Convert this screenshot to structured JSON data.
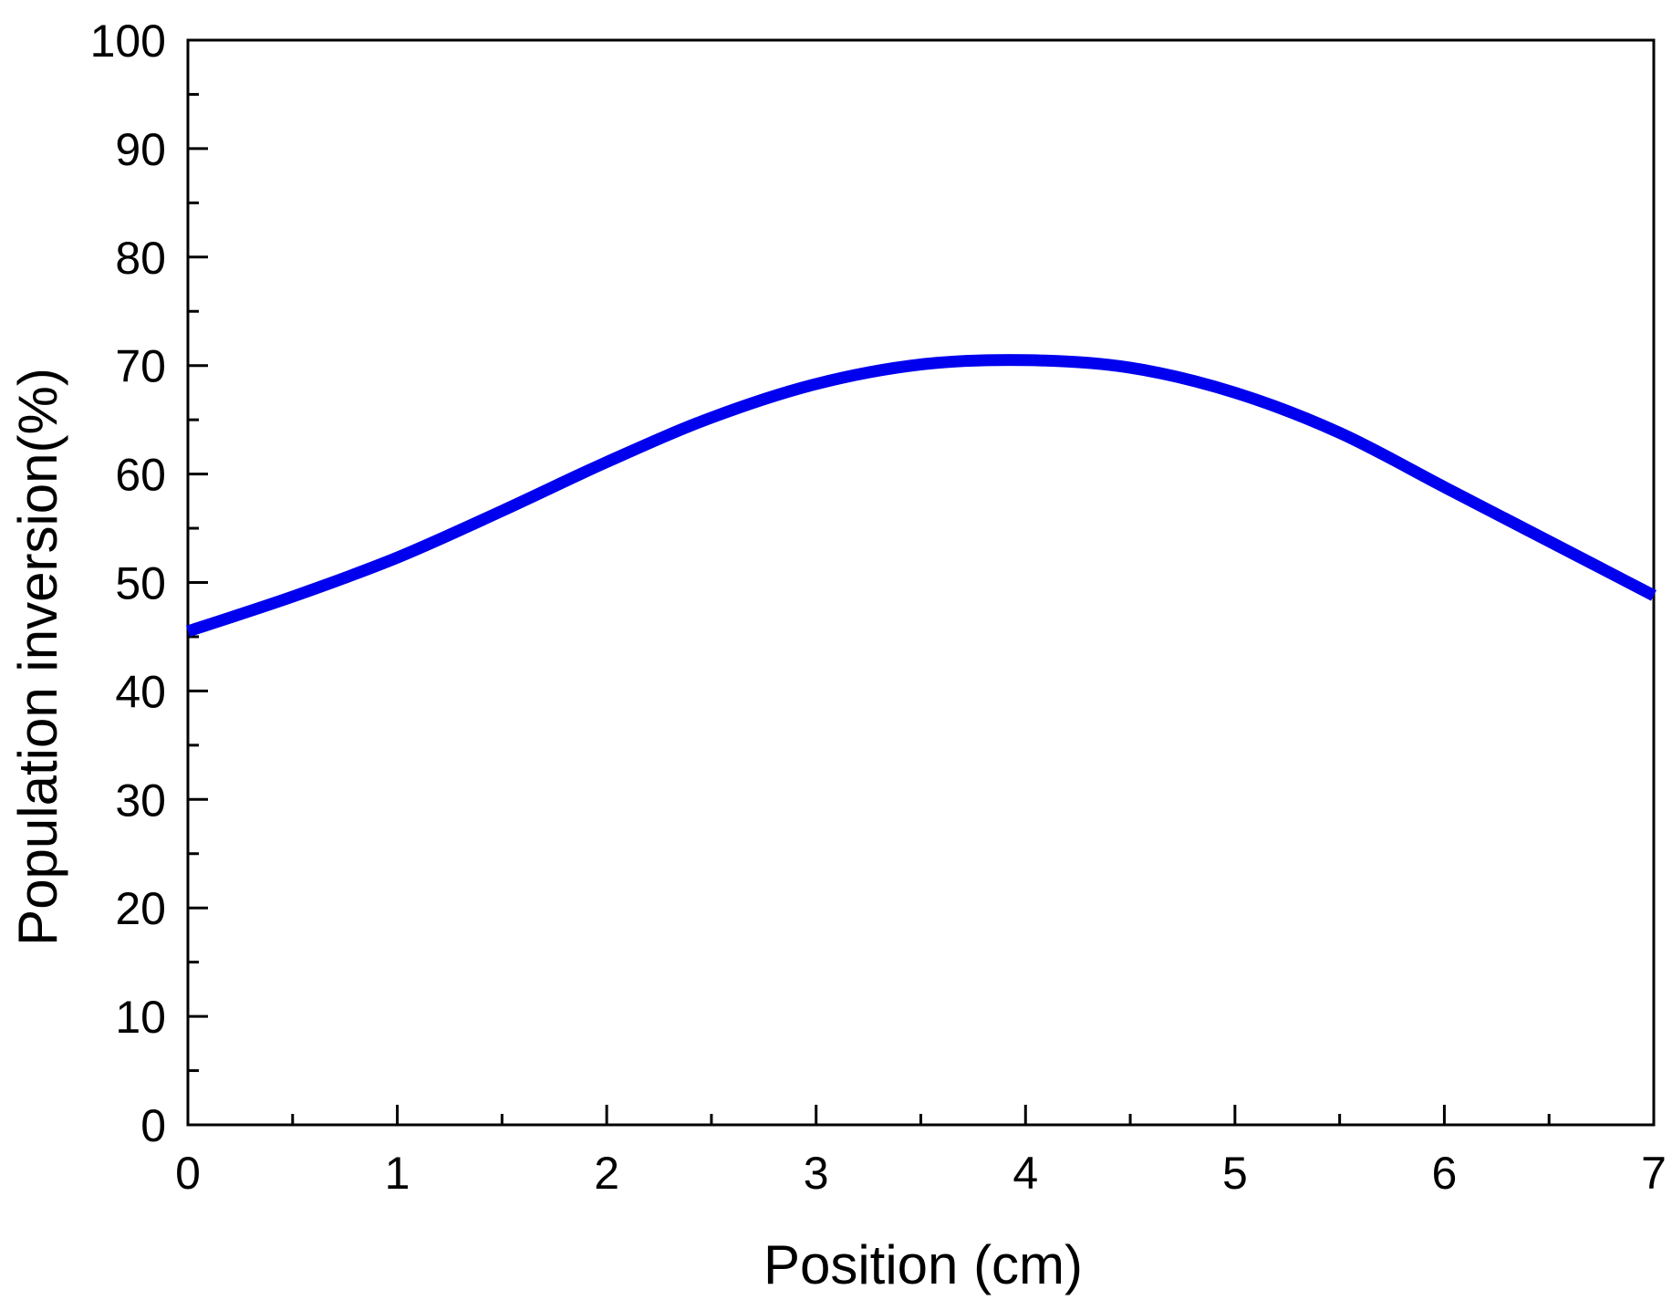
{
  "chart_data": {
    "type": "line",
    "title": "",
    "xlabel": "Position (cm)",
    "ylabel": "Population inversion(%)",
    "xlim": [
      0,
      7
    ],
    "ylim": [
      0,
      100
    ],
    "x_ticks": [
      0,
      1,
      2,
      3,
      4,
      5,
      6,
      7
    ],
    "x_tick_labels": [
      "0",
      "1",
      "2",
      "3",
      "4",
      "5",
      "6",
      "7"
    ],
    "x_minor_step": 0.5,
    "y_ticks": [
      0,
      10,
      20,
      30,
      40,
      50,
      60,
      70,
      80,
      90,
      100
    ],
    "y_tick_labels": [
      "0",
      "10",
      "20",
      "30",
      "40",
      "50",
      "60",
      "70",
      "80",
      "90",
      "100"
    ],
    "y_minor_step": 5,
    "grid": false,
    "legend": "none",
    "series": [
      {
        "color": "#0000ee",
        "x": [
          0,
          0.5,
          1,
          1.5,
          2,
          2.5,
          3,
          3.5,
          4,
          4.5,
          5,
          5.5,
          6,
          6.5,
          7
        ],
        "y": [
          45.5,
          48.7,
          52.3,
          56.6,
          61.1,
          65.2,
          68.3,
          70.1,
          70.5,
          69.8,
          67.5,
          63.8,
          58.8,
          53.8,
          48.8
        ]
      }
    ]
  }
}
